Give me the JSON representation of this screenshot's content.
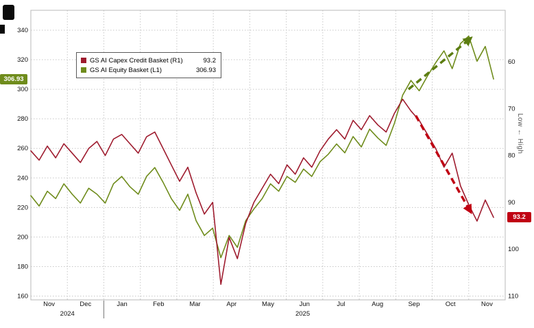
{
  "window": {
    "background": "#ffffff"
  },
  "legend": {
    "items": [
      {
        "label": "GS AI Capex Credit Basket (R1)",
        "value": "93.2",
        "color": "#9e1b2e"
      },
      {
        "label": "GS AI Equity Basket (L1)",
        "value": "306.93",
        "color": "#6f8c1c"
      }
    ]
  },
  "badges": {
    "left": {
      "text": "306.93",
      "color": "#6f8c1c"
    },
    "right": {
      "text": "93.2",
      "color": "#c00013"
    }
  },
  "chart_data": {
    "type": "line",
    "title": "",
    "x_axis": {
      "months": [
        "Nov",
        "Dec",
        "Jan",
        "Feb",
        "Mar",
        "Apr",
        "May",
        "Jun",
        "Jul",
        "Aug",
        "Sep",
        "Oct",
        "Nov"
      ],
      "years": [
        {
          "label": "2024",
          "center_month": 1.0
        },
        {
          "label": "2025",
          "center_month": 7.45
        }
      ],
      "year_separator_month": 2
    },
    "left_axis": {
      "ticks": [
        340,
        320,
        300,
        280,
        260,
        240,
        220,
        200,
        180,
        160
      ],
      "range": [
        160,
        340
      ]
    },
    "right_axis": {
      "ticks": [
        60,
        70,
        80,
        90,
        100,
        110
      ],
      "range": [
        60,
        110
      ],
      "inverted": true,
      "label": "Low ← High"
    },
    "grid": true,
    "series": [
      {
        "name": "GS AI Equity Basket (L1)",
        "axis": "left",
        "color": "#6f8c1c",
        "current": 306.93,
        "values": [
          228,
          221,
          231,
          226,
          236,
          229,
          223,
          233,
          229,
          223,
          236,
          241,
          234,
          229,
          241,
          247,
          237,
          226,
          218,
          229,
          211,
          201,
          206,
          186,
          201,
          193,
          211,
          219,
          226,
          236,
          231,
          241,
          237,
          246,
          241,
          251,
          256,
          263,
          257,
          268,
          261,
          273,
          267,
          262,
          277,
          296,
          306,
          299,
          309,
          318,
          326,
          314,
          331,
          336,
          319,
          329,
          306.93
        ]
      },
      {
        "name": "GS AI Capex Credit Basket (R1)",
        "axis": "right",
        "color": "#9e1b2e",
        "current": 93.2,
        "values": [
          79,
          81,
          78,
          80.5,
          77.5,
          79.5,
          81.5,
          78.5,
          77,
          80,
          76.5,
          75.5,
          77.5,
          79.5,
          76,
          75,
          78.5,
          82,
          85.5,
          82.5,
          88,
          92.5,
          90,
          107.5,
          97.5,
          102,
          94.5,
          90,
          87,
          84,
          86,
          82,
          84,
          80.5,
          82.5,
          79,
          76.5,
          74.5,
          76.5,
          72.5,
          74.5,
          71.5,
          73.5,
          75,
          71,
          68,
          70.5,
          72.5,
          75.5,
          78.5,
          82.5,
          79.5,
          86.5,
          90.5,
          94,
          89.5,
          93.2
        ]
      }
    ],
    "annotations": [
      {
        "type": "arrow",
        "color": "#5c7d12",
        "from": {
          "month": 10.35,
          "axis": "left",
          "value": 300
        },
        "to": {
          "month": 12.05,
          "axis": "left",
          "value": 334.5
        }
      },
      {
        "type": "arrow",
        "color": "#c00013",
        "from": {
          "month": 10.55,
          "axis": "right",
          "value": 71.5
        },
        "to": {
          "month": 12.05,
          "axis": "right",
          "value": 92
        }
      }
    ]
  }
}
